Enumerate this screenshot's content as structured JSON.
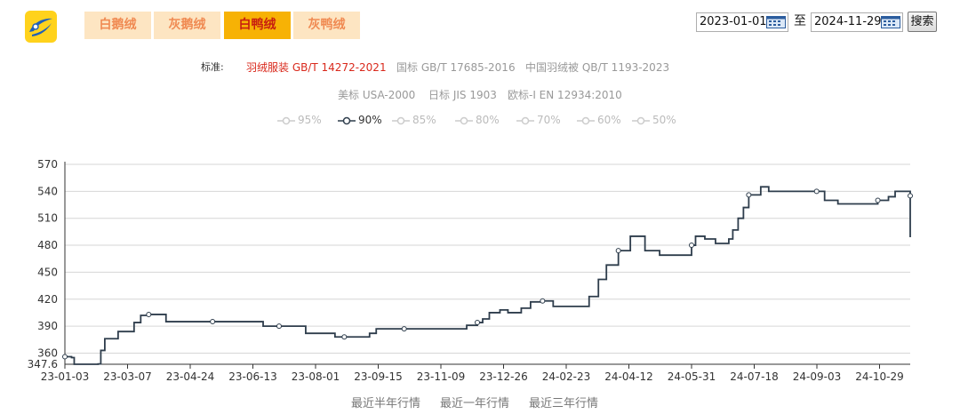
{
  "tabs": [
    {
      "label": "白鹅绒",
      "active": false
    },
    {
      "label": "灰鹅绒",
      "active": false
    },
    {
      "label": "白鸭绒",
      "active": true
    },
    {
      "label": "灰鸭绒",
      "active": false
    }
  ],
  "date_range": {
    "start": "2023-01-01",
    "separator": "至",
    "end": "2024-11-29",
    "search_label": "搜索"
  },
  "standards": {
    "label": "标准:",
    "items": [
      {
        "text": "羽绒服装 GB/T 14272-2021",
        "active": true
      },
      {
        "text": "国标 GB/T 17685-2016",
        "active": false
      },
      {
        "text": "中国羽绒被 QB/T 1193-2023",
        "active": false
      },
      {
        "text": "美标 USA-2000",
        "active": false
      },
      {
        "text": "日标 JIS 1903",
        "active": false
      },
      {
        "text": "欧标-I EN 12934:2010",
        "active": false
      }
    ]
  },
  "legend": [
    {
      "label": "95%",
      "active": false
    },
    {
      "label": "90%",
      "active": true
    },
    {
      "label": "85%",
      "active": false
    },
    {
      "label": "80%",
      "active": false
    },
    {
      "label": "70%",
      "active": false
    },
    {
      "label": "60%",
      "active": false
    },
    {
      "label": "50%",
      "active": false
    }
  ],
  "colors": {
    "line": "#2e3d4c",
    "grid": "#d6d6d6",
    "tab_active_bg": "#f7b205",
    "tab_bg": "#fde5c2",
    "tab_text": "#f08a52",
    "tab_active_text": "#c81f10",
    "standard_active": "#d9291c"
  },
  "range_links": [
    "最近半年行情",
    "最近一年行情",
    "最近三年行情"
  ],
  "chart_data": {
    "type": "line",
    "series": [
      {
        "name": "90%"
      }
    ],
    "x_start": "2023-01-03",
    "x_end": "2024-11-29",
    "x_ticks": [
      "23-01-03",
      "23-03-07",
      "23-04-24",
      "23-06-13",
      "23-08-01",
      "23-09-15",
      "23-11-09",
      "23-12-26",
      "24-02-23",
      "24-04-12",
      "24-05-31",
      "24-07-18",
      "24-09-03",
      "24-10-29"
    ],
    "y_ticks": [
      347.6,
      360,
      390,
      420,
      450,
      480,
      510,
      540,
      570
    ],
    "ylim": [
      347.6,
      570
    ],
    "grid": true,
    "points": [
      {
        "x": "2023-01-03",
        "y": 356,
        "marker": true
      },
      {
        "x": "2023-01-08",
        "y": 355
      },
      {
        "x": "2023-01-10",
        "y": 347.6
      },
      {
        "x": "2023-01-28",
        "y": 348
      },
      {
        "x": "2023-01-30",
        "y": 363
      },
      {
        "x": "2023-02-02",
        "y": 376
      },
      {
        "x": "2023-02-12",
        "y": 384
      },
      {
        "x": "2023-02-24",
        "y": 394
      },
      {
        "x": "2023-03-01",
        "y": 402
      },
      {
        "x": "2023-03-07",
        "y": 403,
        "marker": true
      },
      {
        "x": "2023-03-18",
        "y": 403
      },
      {
        "x": "2023-03-20",
        "y": 395
      },
      {
        "x": "2023-04-24",
        "y": 395,
        "marker": true
      },
      {
        "x": "2023-05-30",
        "y": 395
      },
      {
        "x": "2023-06-01",
        "y": 390
      },
      {
        "x": "2023-06-13",
        "y": 390,
        "marker": true
      },
      {
        "x": "2023-06-30",
        "y": 390
      },
      {
        "x": "2023-07-03",
        "y": 382
      },
      {
        "x": "2023-07-23",
        "y": 382
      },
      {
        "x": "2023-07-25",
        "y": 378
      },
      {
        "x": "2023-08-01",
        "y": 378,
        "marker": true
      },
      {
        "x": "2023-08-18",
        "y": 378
      },
      {
        "x": "2023-08-20",
        "y": 382
      },
      {
        "x": "2023-08-25",
        "y": 387
      },
      {
        "x": "2023-09-15",
        "y": 387,
        "marker": true
      },
      {
        "x": "2023-10-28",
        "y": 387
      },
      {
        "x": "2023-11-01",
        "y": 391
      },
      {
        "x": "2023-11-09",
        "y": 394,
        "marker": true
      },
      {
        "x": "2023-11-13",
        "y": 398
      },
      {
        "x": "2023-11-18",
        "y": 405
      },
      {
        "x": "2023-11-26",
        "y": 408
      },
      {
        "x": "2023-12-02",
        "y": 405
      },
      {
        "x": "2023-12-12",
        "y": 410
      },
      {
        "x": "2023-12-19",
        "y": 417
      },
      {
        "x": "2023-12-28",
        "y": 418,
        "marker": true
      },
      {
        "x": "2024-01-05",
        "y": 412
      },
      {
        "x": "2024-01-28",
        "y": 412
      },
      {
        "x": "2024-02-01",
        "y": 423
      },
      {
        "x": "2024-02-08",
        "y": 442
      },
      {
        "x": "2024-02-14",
        "y": 458
      },
      {
        "x": "2024-02-23",
        "y": 474,
        "marker": true
      },
      {
        "x": "2024-03-03",
        "y": 490
      },
      {
        "x": "2024-03-10",
        "y": 490
      },
      {
        "x": "2024-03-14",
        "y": 474
      },
      {
        "x": "2024-03-25",
        "y": 469
      },
      {
        "x": "2024-04-12",
        "y": 469
      },
      {
        "x": "2024-04-18",
        "y": 480,
        "marker": true
      },
      {
        "x": "2024-04-21",
        "y": 490
      },
      {
        "x": "2024-04-28",
        "y": 487
      },
      {
        "x": "2024-05-06",
        "y": 482
      },
      {
        "x": "2024-05-16",
        "y": 487
      },
      {
        "x": "2024-05-19",
        "y": 497
      },
      {
        "x": "2024-05-23",
        "y": 510
      },
      {
        "x": "2024-05-27",
        "y": 522
      },
      {
        "x": "2024-05-31",
        "y": 536,
        "marker": true
      },
      {
        "x": "2024-06-09",
        "y": 545
      },
      {
        "x": "2024-06-15",
        "y": 540
      },
      {
        "x": "2024-07-21",
        "y": 540,
        "marker": true
      },
      {
        "x": "2024-07-27",
        "y": 530
      },
      {
        "x": "2024-08-06",
        "y": 526
      },
      {
        "x": "2024-09-03",
        "y": 526
      },
      {
        "x": "2024-09-05",
        "y": 530,
        "marker": true
      },
      {
        "x": "2024-09-13",
        "y": 534
      },
      {
        "x": "2024-09-18",
        "y": 540
      },
      {
        "x": "2024-10-18",
        "y": 540
      },
      {
        "x": "2024-10-22",
        "y": 536
      },
      {
        "x": "2024-10-30",
        "y": 535,
        "marker": true
      },
      {
        "x": "2024-11-13",
        "y": 535
      },
      {
        "x": "2024-11-16",
        "y": 520
      },
      {
        "x": "2024-11-22",
        "y": 504
      },
      {
        "x": "2024-11-26",
        "y": 497
      },
      {
        "x": "2024-11-29",
        "y": 489
      }
    ]
  }
}
